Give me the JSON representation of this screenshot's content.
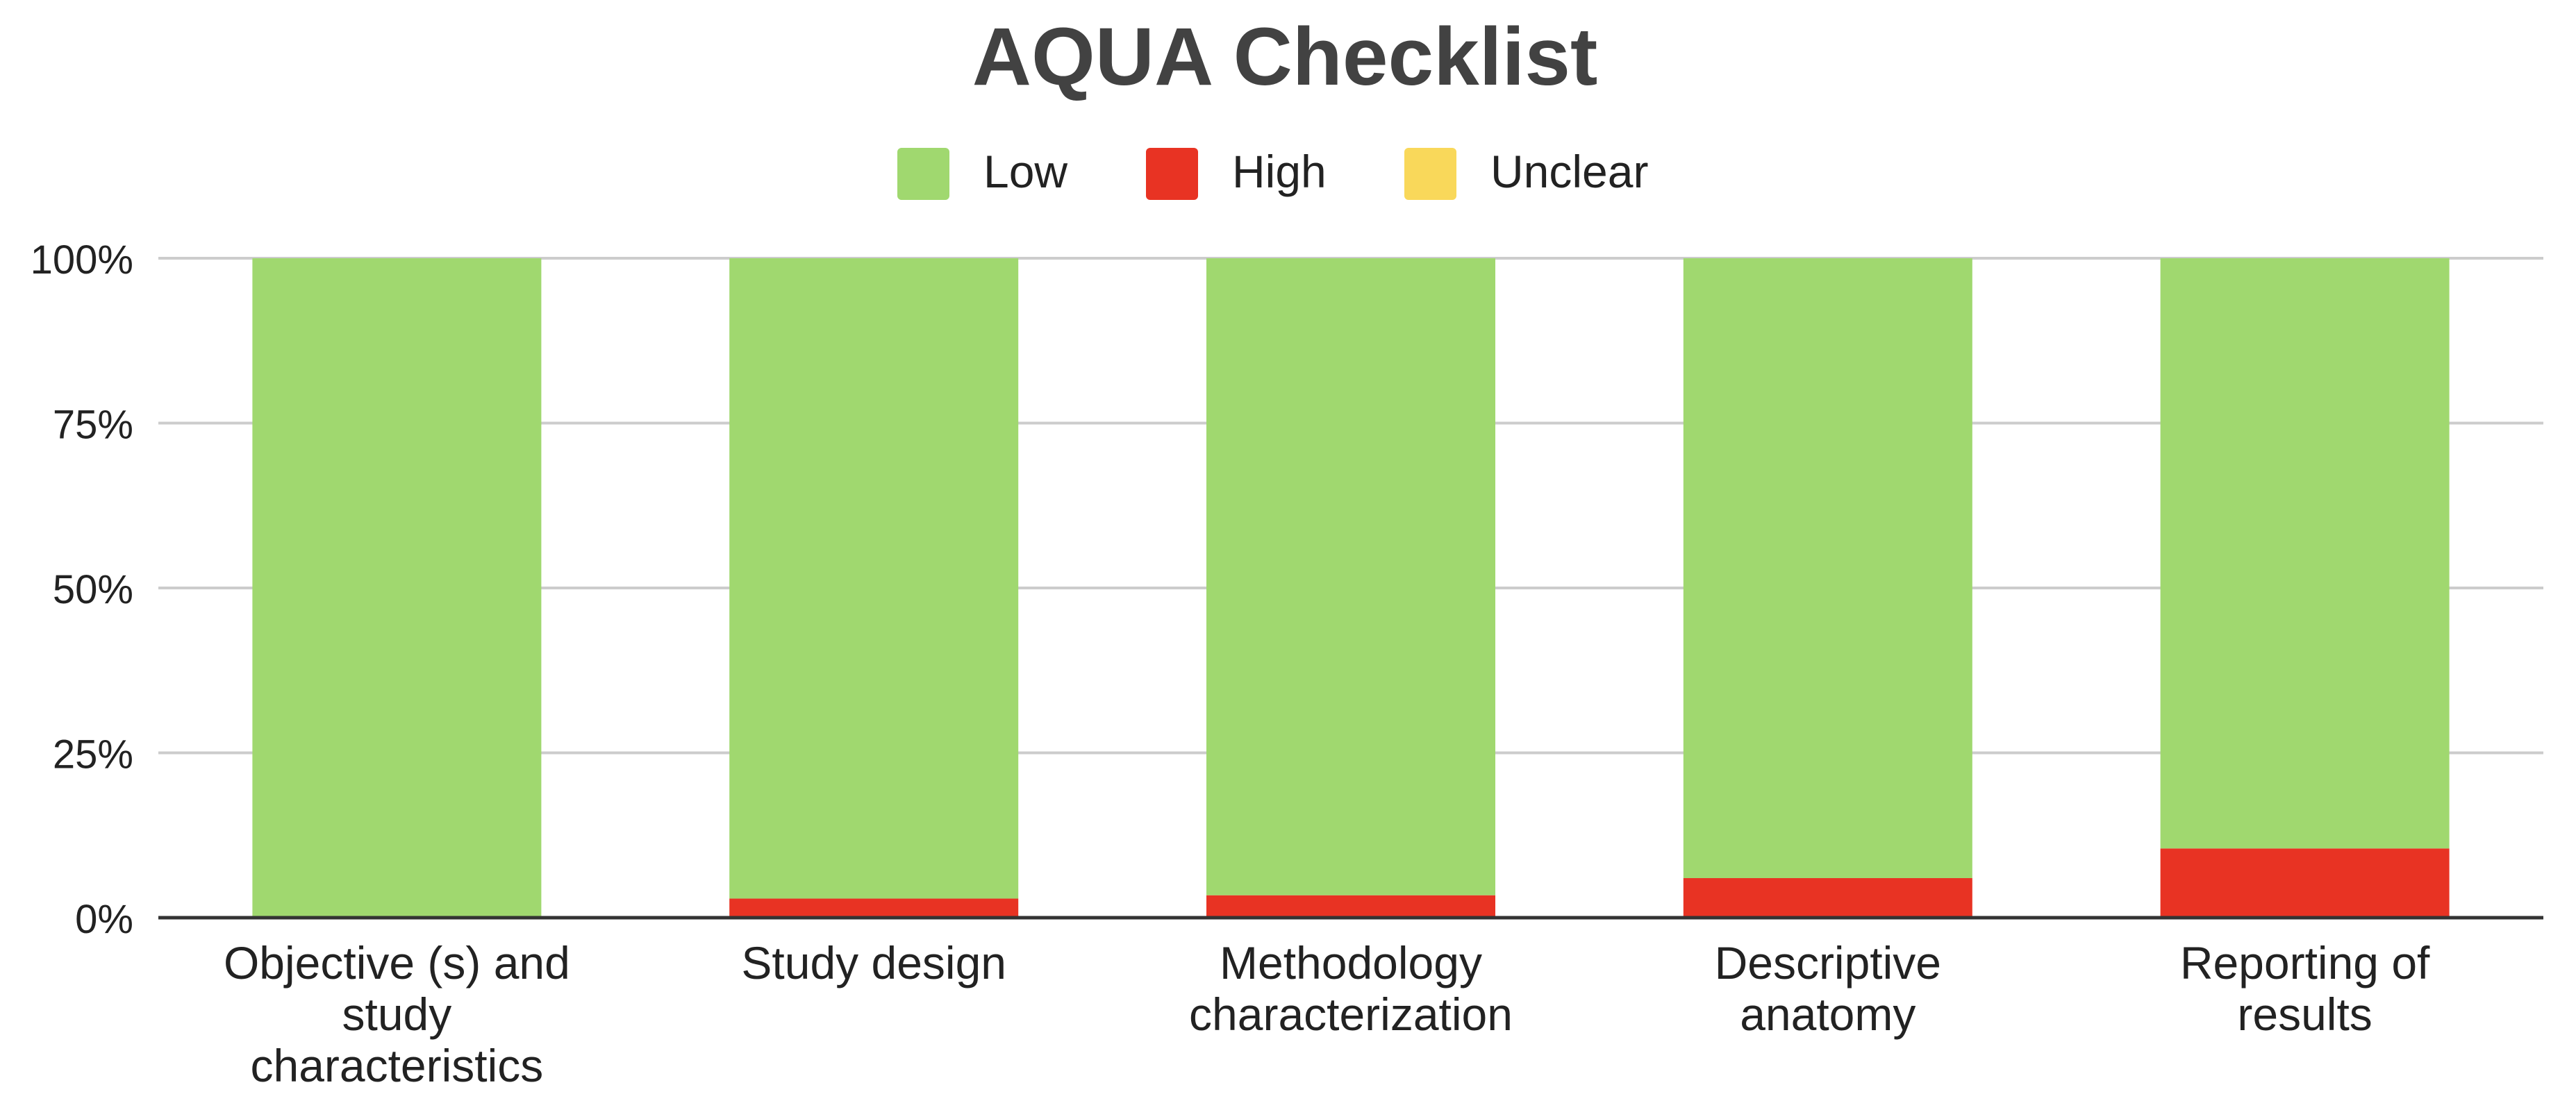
{
  "chart_data": {
    "type": "bar",
    "stacked": true,
    "title": "AQUA Checklist",
    "categories": [
      "Objective (s) and study characteristics",
      "Study design",
      "Methodology characterization",
      "Descriptive anatomy",
      "Reporting of results"
    ],
    "category_lines": [
      [
        "Objective (s) and",
        "study",
        "characteristics"
      ],
      [
        "Study design"
      ],
      [
        "Methodology",
        "characterization"
      ],
      [
        "Descriptive",
        "anatomy"
      ],
      [
        "Reporting of",
        "results"
      ]
    ],
    "series": [
      {
        "name": "Low",
        "color": "#a0d86f",
        "values": [
          100,
          97.1,
          96.6,
          94,
          89.5
        ]
      },
      {
        "name": "High",
        "color": "#e83323",
        "values": [
          0,
          2.9,
          3.4,
          6,
          10.5
        ]
      },
      {
        "name": "Unclear",
        "color": "#f9d85a",
        "values": [
          0,
          0,
          0,
          0,
          0
        ]
      }
    ],
    "stack_order": [
      "High",
      "Low",
      "Unclear"
    ],
    "ylim": [
      0,
      100
    ],
    "yticks": [
      0,
      25,
      50,
      75,
      100
    ],
    "ytick_labels": [
      "0%",
      "25%",
      "50%",
      "75%",
      "100%"
    ],
    "xlabel": "",
    "ylabel": "",
    "grid": true,
    "legend_position": "top-center"
  }
}
